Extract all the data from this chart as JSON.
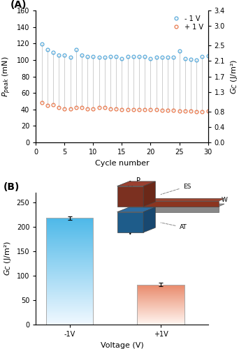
{
  "panel_A": {
    "xlabel": "Cycle number",
    "xlim": [
      0,
      30
    ],
    "ylim_left": [
      0,
      160
    ],
    "ylim_right": [
      0,
      3.4
    ],
    "yticks_left": [
      0,
      20,
      40,
      60,
      80,
      100,
      120,
      140,
      160
    ],
    "yticks_right": [
      0.0,
      0.4,
      0.8,
      1.3,
      1.7,
      2.1,
      2.5,
      3.0,
      3.4
    ],
    "xticks": [
      0,
      5,
      10,
      15,
      20,
      25,
      30
    ],
    "blue_values": [
      119,
      113,
      109,
      106,
      106,
      103,
      113,
      106,
      104,
      104,
      103,
      103,
      104,
      104,
      102,
      104,
      104,
      104,
      104,
      102,
      103,
      103,
      103,
      103,
      111,
      102,
      101,
      100,
      104,
      105
    ],
    "orange_values": [
      48,
      45,
      46,
      42,
      41,
      41,
      42,
      42,
      41,
      41,
      42,
      42,
      41,
      41,
      40,
      40,
      40,
      40,
      40,
      40,
      40,
      39,
      39,
      39,
      38,
      38,
      38,
      37,
      37,
      38
    ],
    "blue_color": "#5aabdb",
    "orange_color": "#e87b50",
    "line_color": "#c8c8c8",
    "legend_blue": "- 1 V",
    "legend_orange": "+ 1 V"
  },
  "panel_B": {
    "xlabel": "Voltage (V)",
    "ylabel": "G_C (J/m²)",
    "categories": [
      "-1V",
      "+1V"
    ],
    "values": [
      218,
      82
    ],
    "errors": [
      4,
      4
    ],
    "ylim": [
      0,
      270
    ],
    "yticks": [
      0,
      50,
      100,
      150,
      200,
      250
    ],
    "bar_blue_top": "#4db8e8",
    "bar_blue_bottom": "#f0f8ff",
    "bar_orange_top": "#e8896a",
    "bar_orange_bottom": "#fff5f0"
  }
}
